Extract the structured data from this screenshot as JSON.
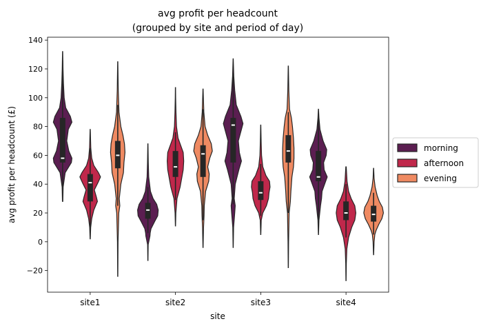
{
  "chart_data": {
    "type": "violin",
    "title": "avg profit per headcount\n(grouped by site and period of day)",
    "xlabel": "site",
    "ylabel": "avg profit per headcount (£)",
    "categories": [
      "site1",
      "site2",
      "site3",
      "site4"
    ],
    "ylim": [
      -35,
      142
    ],
    "yticks": [
      -20,
      0,
      20,
      40,
      60,
      80,
      100,
      120,
      140
    ],
    "grid": false,
    "legend": {
      "placement": "right"
    },
    "series": [
      {
        "name": "morning",
        "color": "#5b1e51",
        "violins": [
          {
            "min": 28,
            "max": 132,
            "q1": 55,
            "median": 58,
            "q3": 86,
            "whisker_low": 34,
            "whisker_high": 126,
            "shape": [
              [
                28,
                0.02
              ],
              [
                38,
                0.05
              ],
              [
                48,
                0.25
              ],
              [
                55,
                0.85
              ],
              [
                58,
                0.9
              ],
              [
                63,
                0.6
              ],
              [
                70,
                0.4
              ],
              [
                78,
                0.55
              ],
              [
                83,
                0.9
              ],
              [
                87,
                0.75
              ],
              [
                93,
                0.3
              ],
              [
                100,
                0.15
              ],
              [
                110,
                0.08
              ],
              [
                120,
                0.04
              ],
              [
                132,
                0.01
              ]
            ]
          },
          {
            "min": -13,
            "max": 68,
            "q1": 16,
            "median": 22,
            "q3": 27,
            "whisker_low": 6,
            "whisker_high": 38,
            "shape": [
              [
                -13,
                0.01
              ],
              [
                -2,
                0.03
              ],
              [
                4,
                0.2
              ],
              [
                6,
                0.22
              ],
              [
                9,
                0.3
              ],
              [
                14,
                0.65
              ],
              [
                18,
                0.95
              ],
              [
                22,
                1.0
              ],
              [
                26,
                0.85
              ],
              [
                30,
                0.5
              ],
              [
                35,
                0.25
              ],
              [
                45,
                0.08
              ],
              [
                55,
                0.04
              ],
              [
                68,
                0.01
              ]
            ]
          },
          {
            "min": -4,
            "max": 127,
            "q1": 55,
            "median": 81,
            "q3": 86,
            "whisker_low": 26,
            "whisker_high": 117,
            "shape": [
              [
                -4,
                0.01
              ],
              [
                10,
                0.04
              ],
              [
                20,
                0.15
              ],
              [
                25,
                0.2
              ],
              [
                30,
                0.1
              ],
              [
                40,
                0.2
              ],
              [
                50,
                0.55
              ],
              [
                56,
                0.8
              ],
              [
                62,
                0.6
              ],
              [
                70,
                0.5
              ],
              [
                78,
                0.8
              ],
              [
                82,
                0.95
              ],
              [
                87,
                0.75
              ],
              [
                95,
                0.3
              ],
              [
                105,
                0.15
              ],
              [
                115,
                0.06
              ],
              [
                127,
                0.01
              ]
            ]
          },
          {
            "min": 5,
            "max": 92,
            "q1": 42,
            "median": 45,
            "q3": 63,
            "whisker_low": 13,
            "whisker_high": 87,
            "shape": [
              [
                5,
                0.01
              ],
              [
                15,
                0.05
              ],
              [
                25,
                0.2
              ],
              [
                30,
                0.3
              ],
              [
                35,
                0.35
              ],
              [
                40,
                0.6
              ],
              [
                45,
                0.85
              ],
              [
                50,
                0.55
              ],
              [
                55,
                0.5
              ],
              [
                60,
                0.75
              ],
              [
                64,
                0.8
              ],
              [
                70,
                0.45
              ],
              [
                78,
                0.15
              ],
              [
                86,
                0.05
              ],
              [
                92,
                0.01
              ]
            ]
          }
        ]
      },
      {
        "name": "afternoon",
        "color": "#c0284b",
        "violins": [
          {
            "min": 2,
            "max": 78,
            "q1": 28,
            "median": 41,
            "q3": 47,
            "whisker_low": 8,
            "whisker_high": 65,
            "shape": [
              [
                2,
                0.01
              ],
              [
                10,
                0.05
              ],
              [
                16,
                0.15
              ],
              [
                22,
                0.35
              ],
              [
                28,
                0.7
              ],
              [
                31,
                0.6
              ],
              [
                36,
                0.4
              ],
              [
                41,
                0.75
              ],
              [
                45,
                1.0
              ],
              [
                48,
                0.8
              ],
              [
                53,
                0.35
              ],
              [
                58,
                0.15
              ],
              [
                65,
                0.06
              ],
              [
                78,
                0.01
              ]
            ]
          },
          {
            "min": 11,
            "max": 107,
            "q1": 45,
            "median": 52,
            "q3": 63,
            "whisker_low": 29,
            "whisker_high": 76,
            "shape": [
              [
                11,
                0.01
              ],
              [
                20,
                0.04
              ],
              [
                30,
                0.15
              ],
              [
                38,
                0.45
              ],
              [
                44,
                0.6
              ],
              [
                50,
                0.75
              ],
              [
                56,
                0.8
              ],
              [
                62,
                0.75
              ],
              [
                66,
                0.55
              ],
              [
                72,
                0.25
              ],
              [
                80,
                0.1
              ],
              [
                90,
                0.05
              ],
              [
                100,
                0.02
              ],
              [
                107,
                0.01
              ]
            ]
          },
          {
            "min": 5,
            "max": 81,
            "q1": 29,
            "median": 34,
            "q3": 42,
            "whisker_low": 18,
            "whisker_high": 54,
            "shape": [
              [
                5,
                0.01
              ],
              [
                15,
                0.05
              ],
              [
                20,
                0.2
              ],
              [
                25,
                0.55
              ],
              [
                30,
                0.75
              ],
              [
                34,
                0.8
              ],
              [
                38,
                0.9
              ],
              [
                42,
                0.85
              ],
              [
                46,
                0.5
              ],
              [
                52,
                0.2
              ],
              [
                60,
                0.08
              ],
              [
                70,
                0.04
              ],
              [
                81,
                0.01
              ]
            ]
          },
          {
            "min": -27,
            "max": 52,
            "q1": 15,
            "median": 20,
            "q3": 28,
            "whisker_low": 3,
            "whisker_high": 40,
            "shape": [
              [
                -27,
                0.01
              ],
              [
                -15,
                0.03
              ],
              [
                -5,
                0.08
              ],
              [
                3,
                0.25
              ],
              [
                10,
                0.55
              ],
              [
                15,
                0.85
              ],
              [
                20,
                0.95
              ],
              [
                25,
                0.85
              ],
              [
                30,
                0.5
              ],
              [
                35,
                0.25
              ],
              [
                42,
                0.1
              ],
              [
                52,
                0.02
              ]
            ]
          }
        ]
      },
      {
        "name": "evening",
        "color": "#ef8a62",
        "violins": [
          {
            "min": -24,
            "max": 125,
            "q1": 51,
            "median": 60,
            "q3": 70,
            "whisker_low": 25,
            "whisker_high": 95,
            "shape": [
              [
                -24,
                0.01
              ],
              [
                0,
                0.03
              ],
              [
                20,
                0.1
              ],
              [
                25,
                0.2
              ],
              [
                30,
                0.15
              ],
              [
                40,
                0.3
              ],
              [
                48,
                0.55
              ],
              [
                55,
                0.6
              ],
              [
                62,
                0.7
              ],
              [
                68,
                0.65
              ],
              [
                74,
                0.5
              ],
              [
                80,
                0.3
              ],
              [
                90,
                0.12
              ],
              [
                105,
                0.05
              ],
              [
                125,
                0.01
              ]
            ]
          },
          {
            "min": -4,
            "max": 106,
            "q1": 45,
            "median": 61,
            "q3": 67,
            "whisker_low": 15,
            "whisker_high": 92,
            "shape": [
              [
                -4,
                0.01
              ],
              [
                10,
                0.05
              ],
              [
                18,
                0.1
              ],
              [
                25,
                0.12
              ],
              [
                35,
                0.25
              ],
              [
                42,
                0.55
              ],
              [
                47,
                0.6
              ],
              [
                52,
                0.45
              ],
              [
                58,
                0.65
              ],
              [
                63,
                0.9
              ],
              [
                68,
                0.8
              ],
              [
                74,
                0.45
              ],
              [
                80,
                0.2
              ],
              [
                90,
                0.08
              ],
              [
                106,
                0.01
              ]
            ]
          },
          {
            "min": -18,
            "max": 122,
            "q1": 55,
            "median": 63,
            "q3": 74,
            "whisker_low": 20,
            "whisker_high": 90,
            "shape": [
              [
                -18,
                0.01
              ],
              [
                0,
                0.03
              ],
              [
                20,
                0.08
              ],
              [
                28,
                0.2
              ],
              [
                35,
                0.25
              ],
              [
                45,
                0.35
              ],
              [
                52,
                0.5
              ],
              [
                58,
                0.55
              ],
              [
                65,
                0.55
              ],
              [
                72,
                0.5
              ],
              [
                80,
                0.4
              ],
              [
                86,
                0.3
              ],
              [
                92,
                0.12
              ],
              [
                105,
                0.05
              ],
              [
                122,
                0.01
              ]
            ]
          },
          {
            "min": -9,
            "max": 51,
            "q1": 14,
            "median": 19,
            "q3": 25,
            "whisker_low": 5,
            "whisker_high": 34,
            "shape": [
              [
                -9,
                0.01
              ],
              [
                0,
                0.05
              ],
              [
                5,
                0.12
              ],
              [
                8,
                0.25
              ],
              [
                12,
                0.5
              ],
              [
                16,
                0.8
              ],
              [
                20,
                0.95
              ],
              [
                24,
                0.85
              ],
              [
                28,
                0.55
              ],
              [
                32,
                0.35
              ],
              [
                38,
                0.15
              ],
              [
                44,
                0.05
              ],
              [
                51,
                0.01
              ]
            ]
          }
        ]
      }
    ]
  }
}
